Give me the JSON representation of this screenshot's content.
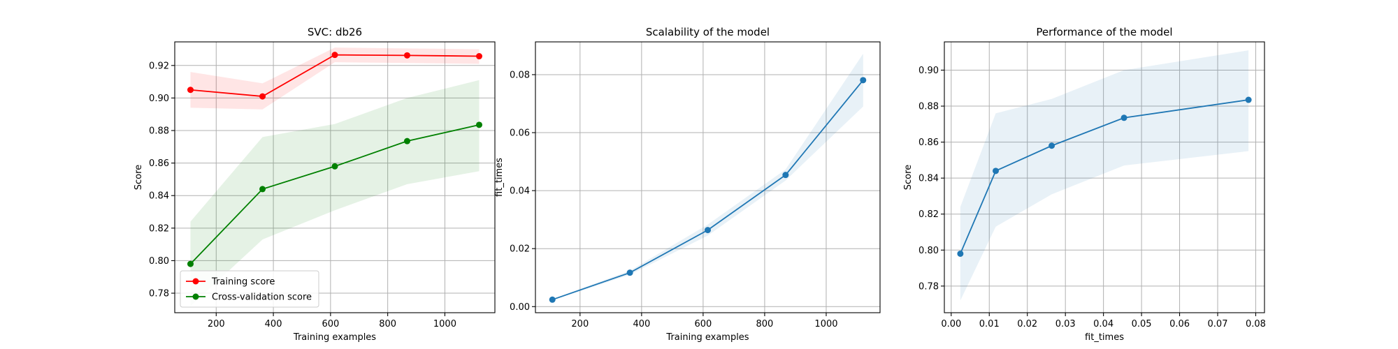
{
  "chart_data": [
    {
      "type": "line",
      "title": "SVC: db26",
      "xlabel": "Training examples",
      "ylabel": "Score",
      "xlim": [
        55,
        1175
      ],
      "ylim": [
        0.768,
        0.9345
      ],
      "xticks": [
        200,
        400,
        600,
        800,
        1000
      ],
      "xtick_labels": [
        "200",
        "400",
        "600",
        "800",
        "1000"
      ],
      "yticks": [
        0.78,
        0.8,
        0.82,
        0.84,
        0.86,
        0.88,
        0.9,
        0.92
      ],
      "ytick_labels": [
        "0.78",
        "0.80",
        "0.82",
        "0.84",
        "0.86",
        "0.88",
        "0.90",
        "0.92"
      ],
      "grid": true,
      "legend": "lower-left",
      "x": [
        110,
        362,
        615,
        868,
        1120
      ],
      "series": [
        {
          "name": "Training score",
          "color": "#ff0000",
          "band_color": "#ff0000",
          "values": [
            0.905,
            0.901,
            0.9265,
            0.9262,
            0.9257
          ],
          "band_low": [
            0.894,
            0.893,
            0.922,
            0.9215,
            0.921
          ],
          "band_high": [
            0.916,
            0.909,
            0.931,
            0.9305,
            0.93
          ]
        },
        {
          "name": "Cross-validation score",
          "color": "#008000",
          "band_color": "#008000",
          "values": [
            0.798,
            0.844,
            0.858,
            0.8735,
            0.8835
          ],
          "band_low": [
            0.772,
            0.813,
            0.831,
            0.847,
            0.855
          ],
          "band_high": [
            0.824,
            0.876,
            0.884,
            0.9,
            0.911
          ]
        }
      ]
    },
    {
      "type": "line",
      "title": "Scalability of the model",
      "xlabel": "Training examples",
      "ylabel": "fit_times",
      "xlim": [
        55,
        1175
      ],
      "ylim": [
        -0.0021,
        0.0913
      ],
      "xticks": [
        200,
        400,
        600,
        800,
        1000
      ],
      "xtick_labels": [
        "200",
        "400",
        "600",
        "800",
        "1000"
      ],
      "yticks": [
        0.0,
        0.02,
        0.04,
        0.06,
        0.08
      ],
      "ytick_labels": [
        "0.00",
        "0.02",
        "0.04",
        "0.06",
        "0.08"
      ],
      "grid": true,
      "x": [
        110,
        362,
        615,
        868,
        1120
      ],
      "series": [
        {
          "color": "#1f77b4",
          "band_color": "#1f77b4",
          "values": [
            0.0024,
            0.0117,
            0.0264,
            0.0454,
            0.0781
          ],
          "band_low": [
            0.0022,
            0.011,
            0.0245,
            0.0435,
            0.069
          ],
          "band_high": [
            0.0026,
            0.0124,
            0.0283,
            0.0473,
            0.0872
          ]
        }
      ]
    },
    {
      "type": "line",
      "title": "Performance of the model",
      "xlabel": "fit_times",
      "ylabel": "Score",
      "xlim": [
        -0.0018,
        0.0823
      ],
      "ylim": [
        0.7652,
        0.9157
      ],
      "xticks": [
        0.0,
        0.01,
        0.02,
        0.03,
        0.04,
        0.05,
        0.06,
        0.07,
        0.08
      ],
      "xtick_labels": [
        "0.00",
        "0.01",
        "0.02",
        "0.03",
        "0.04",
        "0.05",
        "0.06",
        "0.07",
        "0.08"
      ],
      "yticks": [
        0.78,
        0.8,
        0.82,
        0.84,
        0.86,
        0.88,
        0.9
      ],
      "ytick_labels": [
        "0.78",
        "0.80",
        "0.82",
        "0.84",
        "0.86",
        "0.88",
        "0.90"
      ],
      "grid": true,
      "x": [
        0.0024,
        0.0117,
        0.0264,
        0.0454,
        0.0781
      ],
      "series": [
        {
          "color": "#1f77b4",
          "band_color": "#1f77b4",
          "values": [
            0.798,
            0.844,
            0.858,
            0.8735,
            0.8835
          ],
          "band_low": [
            0.772,
            0.813,
            0.831,
            0.847,
            0.855
          ],
          "band_high": [
            0.824,
            0.876,
            0.884,
            0.9,
            0.911
          ]
        }
      ]
    }
  ]
}
